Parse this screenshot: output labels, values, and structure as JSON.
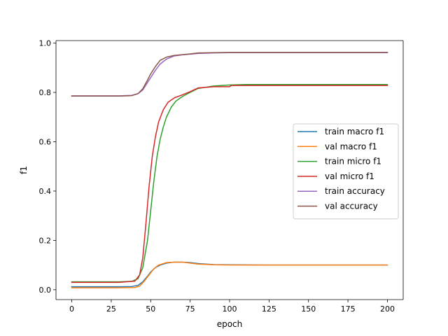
{
  "chart_data": {
    "type": "line",
    "title": "",
    "xlabel": "epoch",
    "ylabel": "f1",
    "xlim": [
      -10,
      210
    ],
    "ylim": [
      -0.04,
      1.01
    ],
    "xticks": [
      0,
      25,
      50,
      75,
      100,
      125,
      150,
      175,
      200
    ],
    "xtick_labels": [
      "0",
      "25",
      "50",
      "75",
      "100",
      "125",
      "150",
      "175",
      "200"
    ],
    "yticks": [
      0.0,
      0.2,
      0.4,
      0.6,
      0.8,
      1.0
    ],
    "ytick_labels": [
      "0.0",
      "0.2",
      "0.4",
      "0.6",
      "0.8",
      "1.0"
    ],
    "grid": false,
    "legend_position": "center-right",
    "series": [
      {
        "name": "train macro f1",
        "color": "#1f77b4",
        "points": [
          [
            0,
            0.012
          ],
          [
            10,
            0.012
          ],
          [
            20,
            0.012
          ],
          [
            30,
            0.012
          ],
          [
            38,
            0.013
          ],
          [
            42,
            0.018
          ],
          [
            45,
            0.032
          ],
          [
            48,
            0.055
          ],
          [
            50,
            0.072
          ],
          [
            53,
            0.09
          ],
          [
            56,
            0.1
          ],
          [
            60,
            0.108
          ],
          [
            65,
            0.112
          ],
          [
            70,
            0.112
          ],
          [
            75,
            0.11
          ],
          [
            80,
            0.106
          ],
          [
            85,
            0.104
          ],
          [
            90,
            0.102
          ],
          [
            100,
            0.101
          ],
          [
            125,
            0.1
          ],
          [
            150,
            0.1
          ],
          [
            175,
            0.1
          ],
          [
            200,
            0.1
          ]
        ]
      },
      {
        "name": "val macro f1",
        "color": "#ff7f0e",
        "points": [
          [
            0,
            0.008
          ],
          [
            10,
            0.008
          ],
          [
            20,
            0.008
          ],
          [
            30,
            0.008
          ],
          [
            40,
            0.009
          ],
          [
            43,
            0.015
          ],
          [
            46,
            0.035
          ],
          [
            49,
            0.06
          ],
          [
            52,
            0.085
          ],
          [
            55,
            0.1
          ],
          [
            60,
            0.11
          ],
          [
            65,
            0.112
          ],
          [
            70,
            0.112
          ],
          [
            75,
            0.108
          ],
          [
            80,
            0.104
          ],
          [
            90,
            0.101
          ],
          [
            100,
            0.1
          ],
          [
            125,
            0.1
          ],
          [
            150,
            0.1
          ],
          [
            175,
            0.1
          ],
          [
            200,
            0.1
          ]
        ]
      },
      {
        "name": "train micro f1",
        "color": "#2ca02c",
        "points": [
          [
            0,
            0.032
          ],
          [
            10,
            0.032
          ],
          [
            20,
            0.032
          ],
          [
            30,
            0.032
          ],
          [
            38,
            0.034
          ],
          [
            42,
            0.045
          ],
          [
            45,
            0.09
          ],
          [
            48,
            0.2
          ],
          [
            50,
            0.32
          ],
          [
            52,
            0.44
          ],
          [
            54,
            0.54
          ],
          [
            56,
            0.61
          ],
          [
            58,
            0.66
          ],
          [
            60,
            0.7
          ],
          [
            63,
            0.74
          ],
          [
            66,
            0.765
          ],
          [
            70,
            0.783
          ],
          [
            75,
            0.8
          ],
          [
            80,
            0.816
          ],
          [
            90,
            0.826
          ],
          [
            100,
            0.83
          ],
          [
            110,
            0.832
          ],
          [
            125,
            0.832
          ],
          [
            150,
            0.832
          ],
          [
            175,
            0.832
          ],
          [
            200,
            0.832
          ]
        ]
      },
      {
        "name": "val micro f1",
        "color": "#d62728",
        "points": [
          [
            0,
            0.03
          ],
          [
            10,
            0.03
          ],
          [
            20,
            0.03
          ],
          [
            30,
            0.03
          ],
          [
            40,
            0.035
          ],
          [
            43,
            0.06
          ],
          [
            45,
            0.13
          ],
          [
            47,
            0.27
          ],
          [
            49,
            0.42
          ],
          [
            51,
            0.54
          ],
          [
            53,
            0.62
          ],
          [
            55,
            0.68
          ],
          [
            58,
            0.73
          ],
          [
            61,
            0.76
          ],
          [
            65,
            0.778
          ],
          [
            70,
            0.79
          ],
          [
            75,
            0.803
          ],
          [
            80,
            0.818
          ],
          [
            90,
            0.823
          ],
          [
            100,
            0.823
          ],
          [
            101,
            0.828
          ],
          [
            125,
            0.828
          ],
          [
            150,
            0.828
          ],
          [
            175,
            0.828
          ],
          [
            200,
            0.828
          ]
        ]
      },
      {
        "name": "train accuracy",
        "color": "#9467bd",
        "points": [
          [
            0,
            0.786
          ],
          [
            10,
            0.786
          ],
          [
            20,
            0.786
          ],
          [
            30,
            0.786
          ],
          [
            38,
            0.788
          ],
          [
            42,
            0.795
          ],
          [
            45,
            0.81
          ],
          [
            48,
            0.84
          ],
          [
            50,
            0.86
          ],
          [
            53,
            0.89
          ],
          [
            56,
            0.915
          ],
          [
            60,
            0.935
          ],
          [
            65,
            0.948
          ],
          [
            70,
            0.952
          ],
          [
            75,
            0.955
          ],
          [
            80,
            0.958
          ],
          [
            90,
            0.96
          ],
          [
            100,
            0.961
          ],
          [
            125,
            0.961
          ],
          [
            150,
            0.961
          ],
          [
            175,
            0.961
          ],
          [
            200,
            0.961
          ]
        ]
      },
      {
        "name": "val accuracy",
        "color": "#8c564b",
        "points": [
          [
            0,
            0.785
          ],
          [
            10,
            0.785
          ],
          [
            20,
            0.785
          ],
          [
            30,
            0.785
          ],
          [
            38,
            0.787
          ],
          [
            42,
            0.795
          ],
          [
            45,
            0.815
          ],
          [
            48,
            0.85
          ],
          [
            50,
            0.875
          ],
          [
            53,
            0.905
          ],
          [
            56,
            0.93
          ],
          [
            60,
            0.943
          ],
          [
            65,
            0.95
          ],
          [
            70,
            0.953
          ],
          [
            75,
            0.956
          ],
          [
            80,
            0.96
          ],
          [
            90,
            0.961
          ],
          [
            100,
            0.962
          ],
          [
            125,
            0.962
          ],
          [
            150,
            0.962
          ],
          [
            175,
            0.962
          ],
          [
            200,
            0.962
          ]
        ]
      }
    ]
  }
}
